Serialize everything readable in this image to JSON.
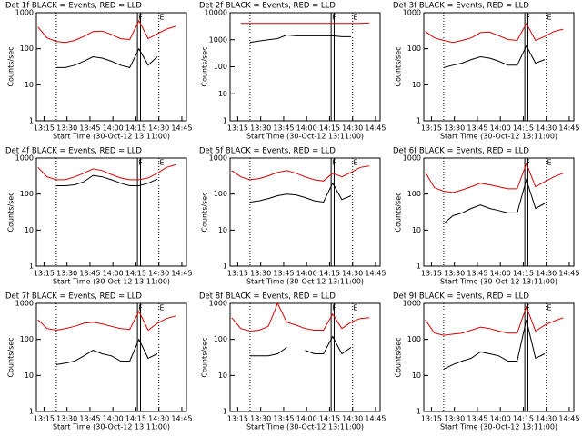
{
  "chart_data": [
    {
      "type": "line",
      "title": "Det 1f BLACK = Events, RED = LLD",
      "xlabel": "Start Time (30-Oct-12 13:11:00)",
      "ylabel": "Counts/sec",
      "log_y": true,
      "x": [
        791,
        797,
        803,
        809,
        815,
        821,
        827,
        833,
        839,
        845,
        851,
        857,
        863,
        869,
        875,
        881
      ],
      "xlim": [
        790,
        888
      ],
      "xticks": [
        {
          "value": 795,
          "label": "13:15"
        },
        {
          "value": 810,
          "label": "13:30"
        },
        {
          "value": 825,
          "label": "13:45"
        },
        {
          "value": 840,
          "label": "14:00"
        },
        {
          "value": 855,
          "label": "14:15"
        },
        {
          "value": 870,
          "label": "14:30"
        },
        {
          "value": 885,
          "label": "14:45"
        }
      ],
      "ylim": [
        1,
        1000
      ],
      "yticks": [
        1,
        10,
        100,
        1000
      ],
      "solid_lines": [
        856,
        858
      ],
      "dotted_lines": [
        803,
        870
      ],
      "annotations": [
        {
          "x": 858,
          "text": "F"
        },
        {
          "x": 872,
          "text": "E"
        }
      ],
      "series": [
        {
          "color": "#000000",
          "values": [
            null,
            null,
            30,
            30,
            35,
            45,
            60,
            55,
            45,
            35,
            30,
            100,
            35,
            60,
            null,
            null
          ]
        },
        {
          "color": "#dd0000",
          "values": [
            400,
            200,
            160,
            150,
            170,
            220,
            300,
            310,
            250,
            190,
            180,
            600,
            190,
            260,
            350,
            420
          ]
        }
      ]
    },
    {
      "type": "line",
      "title": "Det 2f BLACK = Events, RED = LLD",
      "xlabel": "Start Time (30-Oct-12 13:11:00)",
      "ylabel": "Counts/sec",
      "log_y": true,
      "x": [
        791,
        797,
        803,
        809,
        815,
        821,
        827,
        833,
        839,
        845,
        851,
        857,
        863,
        869,
        875,
        881
      ],
      "xlim": [
        790,
        888
      ],
      "xticks": [
        {
          "value": 795,
          "label": "13:15"
        },
        {
          "value": 810,
          "label": "13:30"
        },
        {
          "value": 825,
          "label": "13:45"
        },
        {
          "value": 840,
          "label": "14:00"
        },
        {
          "value": 855,
          "label": "14:15"
        },
        {
          "value": 870,
          "label": "14:30"
        },
        {
          "value": 885,
          "label": "14:45"
        }
      ],
      "ylim": [
        1,
        10000
      ],
      "yticks": [
        1,
        10,
        100,
        1000,
        10000
      ],
      "solid_lines": [
        856,
        858
      ],
      "dotted_lines": [
        803,
        870
      ],
      "annotations": [
        {
          "x": 858,
          "text": "F"
        },
        {
          "x": 872,
          "text": "E"
        }
      ],
      "series": [
        {
          "color": "#000000",
          "values": [
            null,
            null,
            800,
            900,
            1000,
            1100,
            1500,
            1400,
            1400,
            1400,
            1400,
            1400,
            1300,
            1300,
            null,
            null
          ]
        },
        {
          "color": "#dd0000",
          "values": [
            null,
            4000,
            4000,
            4000,
            4000,
            4000,
            4000,
            4000,
            4000,
            4000,
            4000,
            4000,
            4000,
            4000,
            4000,
            4200
          ]
        }
      ]
    },
    {
      "type": "line",
      "title": "Det 3f BLACK = Events, RED = LLD",
      "xlabel": "Start Time (30-Oct-12 13:11:00)",
      "ylabel": "Counts/sec",
      "log_y": true,
      "x": [
        791,
        797,
        803,
        809,
        815,
        821,
        827,
        833,
        839,
        845,
        851,
        857,
        863,
        869,
        875,
        881
      ],
      "xlim": [
        790,
        888
      ],
      "xticks": [
        {
          "value": 795,
          "label": "13:15"
        },
        {
          "value": 810,
          "label": "13:30"
        },
        {
          "value": 825,
          "label": "13:45"
        },
        {
          "value": 840,
          "label": "14:00"
        },
        {
          "value": 855,
          "label": "14:15"
        },
        {
          "value": 870,
          "label": "14:30"
        },
        {
          "value": 885,
          "label": "14:45"
        }
      ],
      "ylim": [
        1,
        1000
      ],
      "yticks": [
        1,
        10,
        100,
        1000
      ],
      "solid_lines": [
        856,
        858
      ],
      "dotted_lines": [
        803,
        870
      ],
      "annotations": [
        {
          "x": 858,
          "text": "F"
        },
        {
          "x": 872,
          "text": "E"
        }
      ],
      "series": [
        {
          "color": "#000000",
          "values": [
            null,
            null,
            30,
            35,
            40,
            50,
            60,
            55,
            45,
            35,
            35,
            120,
            40,
            50,
            null,
            null
          ]
        },
        {
          "color": "#dd0000",
          "values": [
            300,
            200,
            170,
            150,
            170,
            200,
            280,
            290,
            230,
            180,
            170,
            500,
            170,
            220,
            300,
            350
          ]
        }
      ]
    },
    {
      "type": "line",
      "title": "Det 4f BLACK = Events, RED = LLD",
      "xlabel": "Start Time (30-Oct-12 13:11:00)",
      "ylabel": "Counts/sec",
      "log_y": true,
      "x": [
        791,
        797,
        803,
        809,
        815,
        821,
        827,
        833,
        839,
        845,
        851,
        857,
        863,
        869,
        875,
        881
      ],
      "xlim": [
        790,
        888
      ],
      "xticks": [
        {
          "value": 795,
          "label": "13:15"
        },
        {
          "value": 810,
          "label": "13:30"
        },
        {
          "value": 825,
          "label": "13:45"
        },
        {
          "value": 840,
          "label": "14:00"
        },
        {
          "value": 855,
          "label": "14:15"
        },
        {
          "value": 870,
          "label": "14:30"
        },
        {
          "value": 885,
          "label": "14:45"
        }
      ],
      "ylim": [
        1,
        1000
      ],
      "yticks": [
        1,
        10,
        100,
        1000
      ],
      "solid_lines": [
        856,
        858
      ],
      "dotted_lines": [
        803,
        870
      ],
      "annotations": [
        {
          "x": 858,
          "text": "F"
        },
        {
          "x": 872,
          "text": "E"
        }
      ],
      "series": [
        {
          "color": "#000000",
          "values": [
            null,
            null,
            170,
            170,
            180,
            220,
            330,
            300,
            250,
            200,
            170,
            170,
            200,
            260,
            null,
            null
          ]
        },
        {
          "color": "#dd0000",
          "values": [
            550,
            300,
            250,
            250,
            300,
            380,
            500,
            450,
            350,
            280,
            250,
            250,
            280,
            380,
            550,
            650
          ]
        }
      ]
    },
    {
      "type": "line",
      "title": "Det 5f BLACK = Events, RED = LLD",
      "xlabel": "Start Time (30-Oct-12 13:11:00)",
      "ylabel": "Counts/sec",
      "log_y": true,
      "x": [
        791,
        797,
        803,
        809,
        815,
        821,
        827,
        833,
        839,
        845,
        851,
        857,
        863,
        869,
        875,
        881
      ],
      "xlim": [
        790,
        888
      ],
      "xticks": [
        {
          "value": 795,
          "label": "13:15"
        },
        {
          "value": 810,
          "label": "13:30"
        },
        {
          "value": 825,
          "label": "13:45"
        },
        {
          "value": 840,
          "label": "14:00"
        },
        {
          "value": 855,
          "label": "14:15"
        },
        {
          "value": 870,
          "label": "14:30"
        },
        {
          "value": 885,
          "label": "14:45"
        }
      ],
      "ylim": [
        1,
        1000
      ],
      "yticks": [
        1,
        10,
        100,
        1000
      ],
      "solid_lines": [
        856,
        858
      ],
      "dotted_lines": [
        803,
        870
      ],
      "annotations": [
        {
          "x": 858,
          "text": "F"
        },
        {
          "x": 872,
          "text": "E"
        }
      ],
      "series": [
        {
          "color": "#000000",
          "values": [
            null,
            null,
            60,
            65,
            75,
            90,
            100,
            95,
            80,
            65,
            60,
            200,
            70,
            90,
            null,
            null
          ]
        },
        {
          "color": "#dd0000",
          "values": [
            450,
            300,
            250,
            270,
            320,
            400,
            450,
            380,
            300,
            250,
            230,
            380,
            300,
            400,
            550,
            600
          ]
        }
      ]
    },
    {
      "type": "line",
      "title": "Det 6f BLACK = Events, RED = LLD",
      "xlabel": "Start Time (30-Oct-12 13:11:00)",
      "ylabel": "Counts/sec",
      "log_y": true,
      "x": [
        791,
        797,
        803,
        809,
        815,
        821,
        827,
        833,
        839,
        845,
        851,
        857,
        863,
        869,
        875,
        881
      ],
      "xlim": [
        790,
        888
      ],
      "xticks": [
        {
          "value": 795,
          "label": "13:15"
        },
        {
          "value": 810,
          "label": "13:30"
        },
        {
          "value": 825,
          "label": "13:45"
        },
        {
          "value": 840,
          "label": "14:00"
        },
        {
          "value": 855,
          "label": "14:15"
        },
        {
          "value": 870,
          "label": "14:30"
        },
        {
          "value": 885,
          "label": "14:45"
        }
      ],
      "ylim": [
        1,
        1000
      ],
      "yticks": [
        1,
        10,
        100,
        1000
      ],
      "solid_lines": [
        856,
        858
      ],
      "dotted_lines": [
        803,
        870
      ],
      "annotations": [
        {
          "x": 858,
          "text": "F"
        },
        {
          "x": 872,
          "text": "E"
        }
      ],
      "series": [
        {
          "color": "#000000",
          "values": [
            null,
            null,
            15,
            25,
            30,
            40,
            50,
            40,
            35,
            30,
            30,
            250,
            40,
            55,
            null,
            null
          ]
        },
        {
          "color": "#dd0000",
          "values": [
            400,
            150,
            120,
            110,
            130,
            160,
            200,
            180,
            160,
            140,
            140,
            700,
            160,
            220,
            300,
            380
          ]
        }
      ]
    },
    {
      "type": "line",
      "title": "Det 7f BLACK = Events, RED = LLD",
      "xlabel": "Start Time (30-Oct-12 13:11:00)",
      "ylabel": "Counts/sec",
      "log_y": true,
      "x": [
        791,
        797,
        803,
        809,
        815,
        821,
        827,
        833,
        839,
        845,
        851,
        857,
        863,
        869,
        875,
        881
      ],
      "xlim": [
        790,
        888
      ],
      "xticks": [
        {
          "value": 795,
          "label": "13:15"
        },
        {
          "value": 810,
          "label": "13:30"
        },
        {
          "value": 825,
          "label": "13:45"
        },
        {
          "value": 840,
          "label": "14:00"
        },
        {
          "value": 855,
          "label": "14:15"
        },
        {
          "value": 870,
          "label": "14:30"
        },
        {
          "value": 885,
          "label": "14:45"
        }
      ],
      "ylim": [
        1,
        1000
      ],
      "yticks": [
        1,
        10,
        100,
        1000
      ],
      "solid_lines": [
        856,
        858
      ],
      "dotted_lines": [
        803,
        870
      ],
      "annotations": [
        {
          "x": 858,
          "text": "F"
        },
        {
          "x": 872,
          "text": "E"
        }
      ],
      "series": [
        {
          "color": "#000000",
          "values": [
            null,
            null,
            20,
            22,
            25,
            35,
            50,
            40,
            35,
            25,
            25,
            100,
            30,
            40,
            null,
            null
          ]
        },
        {
          "color": "#dd0000",
          "values": [
            350,
            200,
            180,
            200,
            230,
            280,
            300,
            270,
            230,
            200,
            190,
            600,
            180,
            280,
            380,
            450
          ]
        }
      ]
    },
    {
      "type": "line",
      "title": "Det 8f BLACK = Events, RED = LLD",
      "xlabel": "Start Time (30-Oct-12 13:11:00)",
      "ylabel": "Counts/sec",
      "log_y": true,
      "x": [
        791,
        797,
        803,
        809,
        815,
        821,
        827,
        833,
        839,
        845,
        851,
        857,
        863,
        869,
        875,
        881
      ],
      "xlim": [
        790,
        888
      ],
      "xticks": [
        {
          "value": 795,
          "label": "13:15"
        },
        {
          "value": 810,
          "label": "13:30"
        },
        {
          "value": 825,
          "label": "13:45"
        },
        {
          "value": 840,
          "label": "14:00"
        },
        {
          "value": 855,
          "label": "14:15"
        },
        {
          "value": 870,
          "label": "14:30"
        },
        {
          "value": 885,
          "label": "14:45"
        }
      ],
      "ylim": [
        1,
        1000
      ],
      "yticks": [
        1,
        10,
        100,
        1000
      ],
      "solid_lines": [
        856,
        858
      ],
      "dotted_lines": [
        803,
        870
      ],
      "annotations": [
        {
          "x": 858,
          "text": "F"
        },
        {
          "x": 872,
          "text": "E"
        }
      ],
      "series": [
        {
          "color": "#000000",
          "values": [
            null,
            null,
            35,
            35,
            35,
            40,
            60,
            null,
            50,
            40,
            40,
            120,
            40,
            60,
            null,
            null
          ]
        },
        {
          "color": "#dd0000",
          "values": [
            400,
            200,
            170,
            180,
            230,
            1000,
            300,
            250,
            200,
            180,
            180,
            500,
            200,
            300,
            380,
            400
          ]
        }
      ]
    },
    {
      "type": "line",
      "title": "Det 9f BLACK = Events, RED = LLD",
      "xlabel": "Start Time (30-Oct-12 13:11:00)",
      "ylabel": "Counts/sec",
      "log_y": true,
      "x": [
        791,
        797,
        803,
        809,
        815,
        821,
        827,
        833,
        839,
        845,
        851,
        857,
        863,
        869,
        875,
        881
      ],
      "xlim": [
        790,
        888
      ],
      "xticks": [
        {
          "value": 795,
          "label": "13:15"
        },
        {
          "value": 810,
          "label": "13:30"
        },
        {
          "value": 825,
          "label": "13:45"
        },
        {
          "value": 840,
          "label": "14:00"
        },
        {
          "value": 855,
          "label": "14:15"
        },
        {
          "value": 870,
          "label": "14:30"
        },
        {
          "value": 885,
          "label": "14:45"
        }
      ],
      "ylim": [
        1,
        1000
      ],
      "yticks": [
        1,
        10,
        100,
        1000
      ],
      "solid_lines": [
        856,
        858
      ],
      "dotted_lines": [
        803,
        870
      ],
      "annotations": [
        {
          "x": 858,
          "text": "F"
        },
        {
          "x": 872,
          "text": "E"
        }
      ],
      "series": [
        {
          "color": "#000000",
          "values": [
            null,
            null,
            15,
            20,
            25,
            30,
            45,
            40,
            35,
            25,
            25,
            350,
            30,
            40,
            null,
            null
          ]
        },
        {
          "color": "#dd0000",
          "values": [
            350,
            150,
            130,
            140,
            150,
            180,
            220,
            200,
            170,
            150,
            150,
            800,
            170,
            250,
            320,
            400
          ]
        }
      ]
    }
  ]
}
